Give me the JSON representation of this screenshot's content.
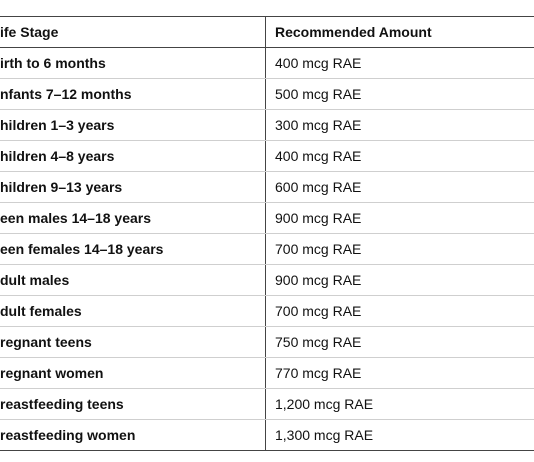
{
  "table": {
    "header": [
      "ife Stage",
      "Recommended Amount"
    ],
    "rows": [
      [
        "irth to 6 months",
        "400 mcg RAE"
      ],
      [
        "nfants 7–12 months",
        "500 mcg RAE"
      ],
      [
        "hildren 1–3 years",
        "300 mcg RAE"
      ],
      [
        "hildren 4–8 years",
        "400 mcg RAE"
      ],
      [
        "hildren 9–13 years",
        "600 mcg RAE"
      ],
      [
        "een males 14–18 years",
        "900 mcg RAE"
      ],
      [
        "een females 14–18 years",
        "700 mcg RAE"
      ],
      [
        "dult males",
        "900 mcg RAE"
      ],
      [
        "dult females",
        "700 mcg RAE"
      ],
      [
        "regnant teens",
        "750 mcg RAE"
      ],
      [
        "regnant women",
        "770 mcg RAE"
      ],
      [
        "reastfeeding teens",
        "1,200 mcg RAE"
      ],
      [
        "reastfeeding women",
        "1,300 mcg RAE"
      ]
    ]
  }
}
